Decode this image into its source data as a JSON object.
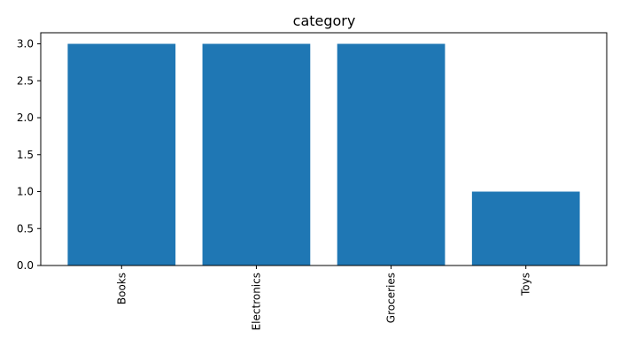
{
  "chart_data": {
    "type": "bar",
    "title": "category",
    "xlabel": "",
    "ylabel": "",
    "categories": [
      "Books",
      "Electronics",
      "Groceries",
      "Toys"
    ],
    "values": [
      3,
      3,
      3,
      1
    ],
    "ylim": [
      0,
      3.15
    ],
    "yticks": [
      0.0,
      0.5,
      1.0,
      1.5,
      2.0,
      2.5,
      3.0
    ],
    "ytick_labels": [
      "0.0",
      "0.5",
      "1.0",
      "1.5",
      "2.0",
      "2.5",
      "3.0"
    ],
    "bar_color": "#1f77b4",
    "grid": false,
    "legend": "none",
    "xtick_rotation": "vertical"
  }
}
